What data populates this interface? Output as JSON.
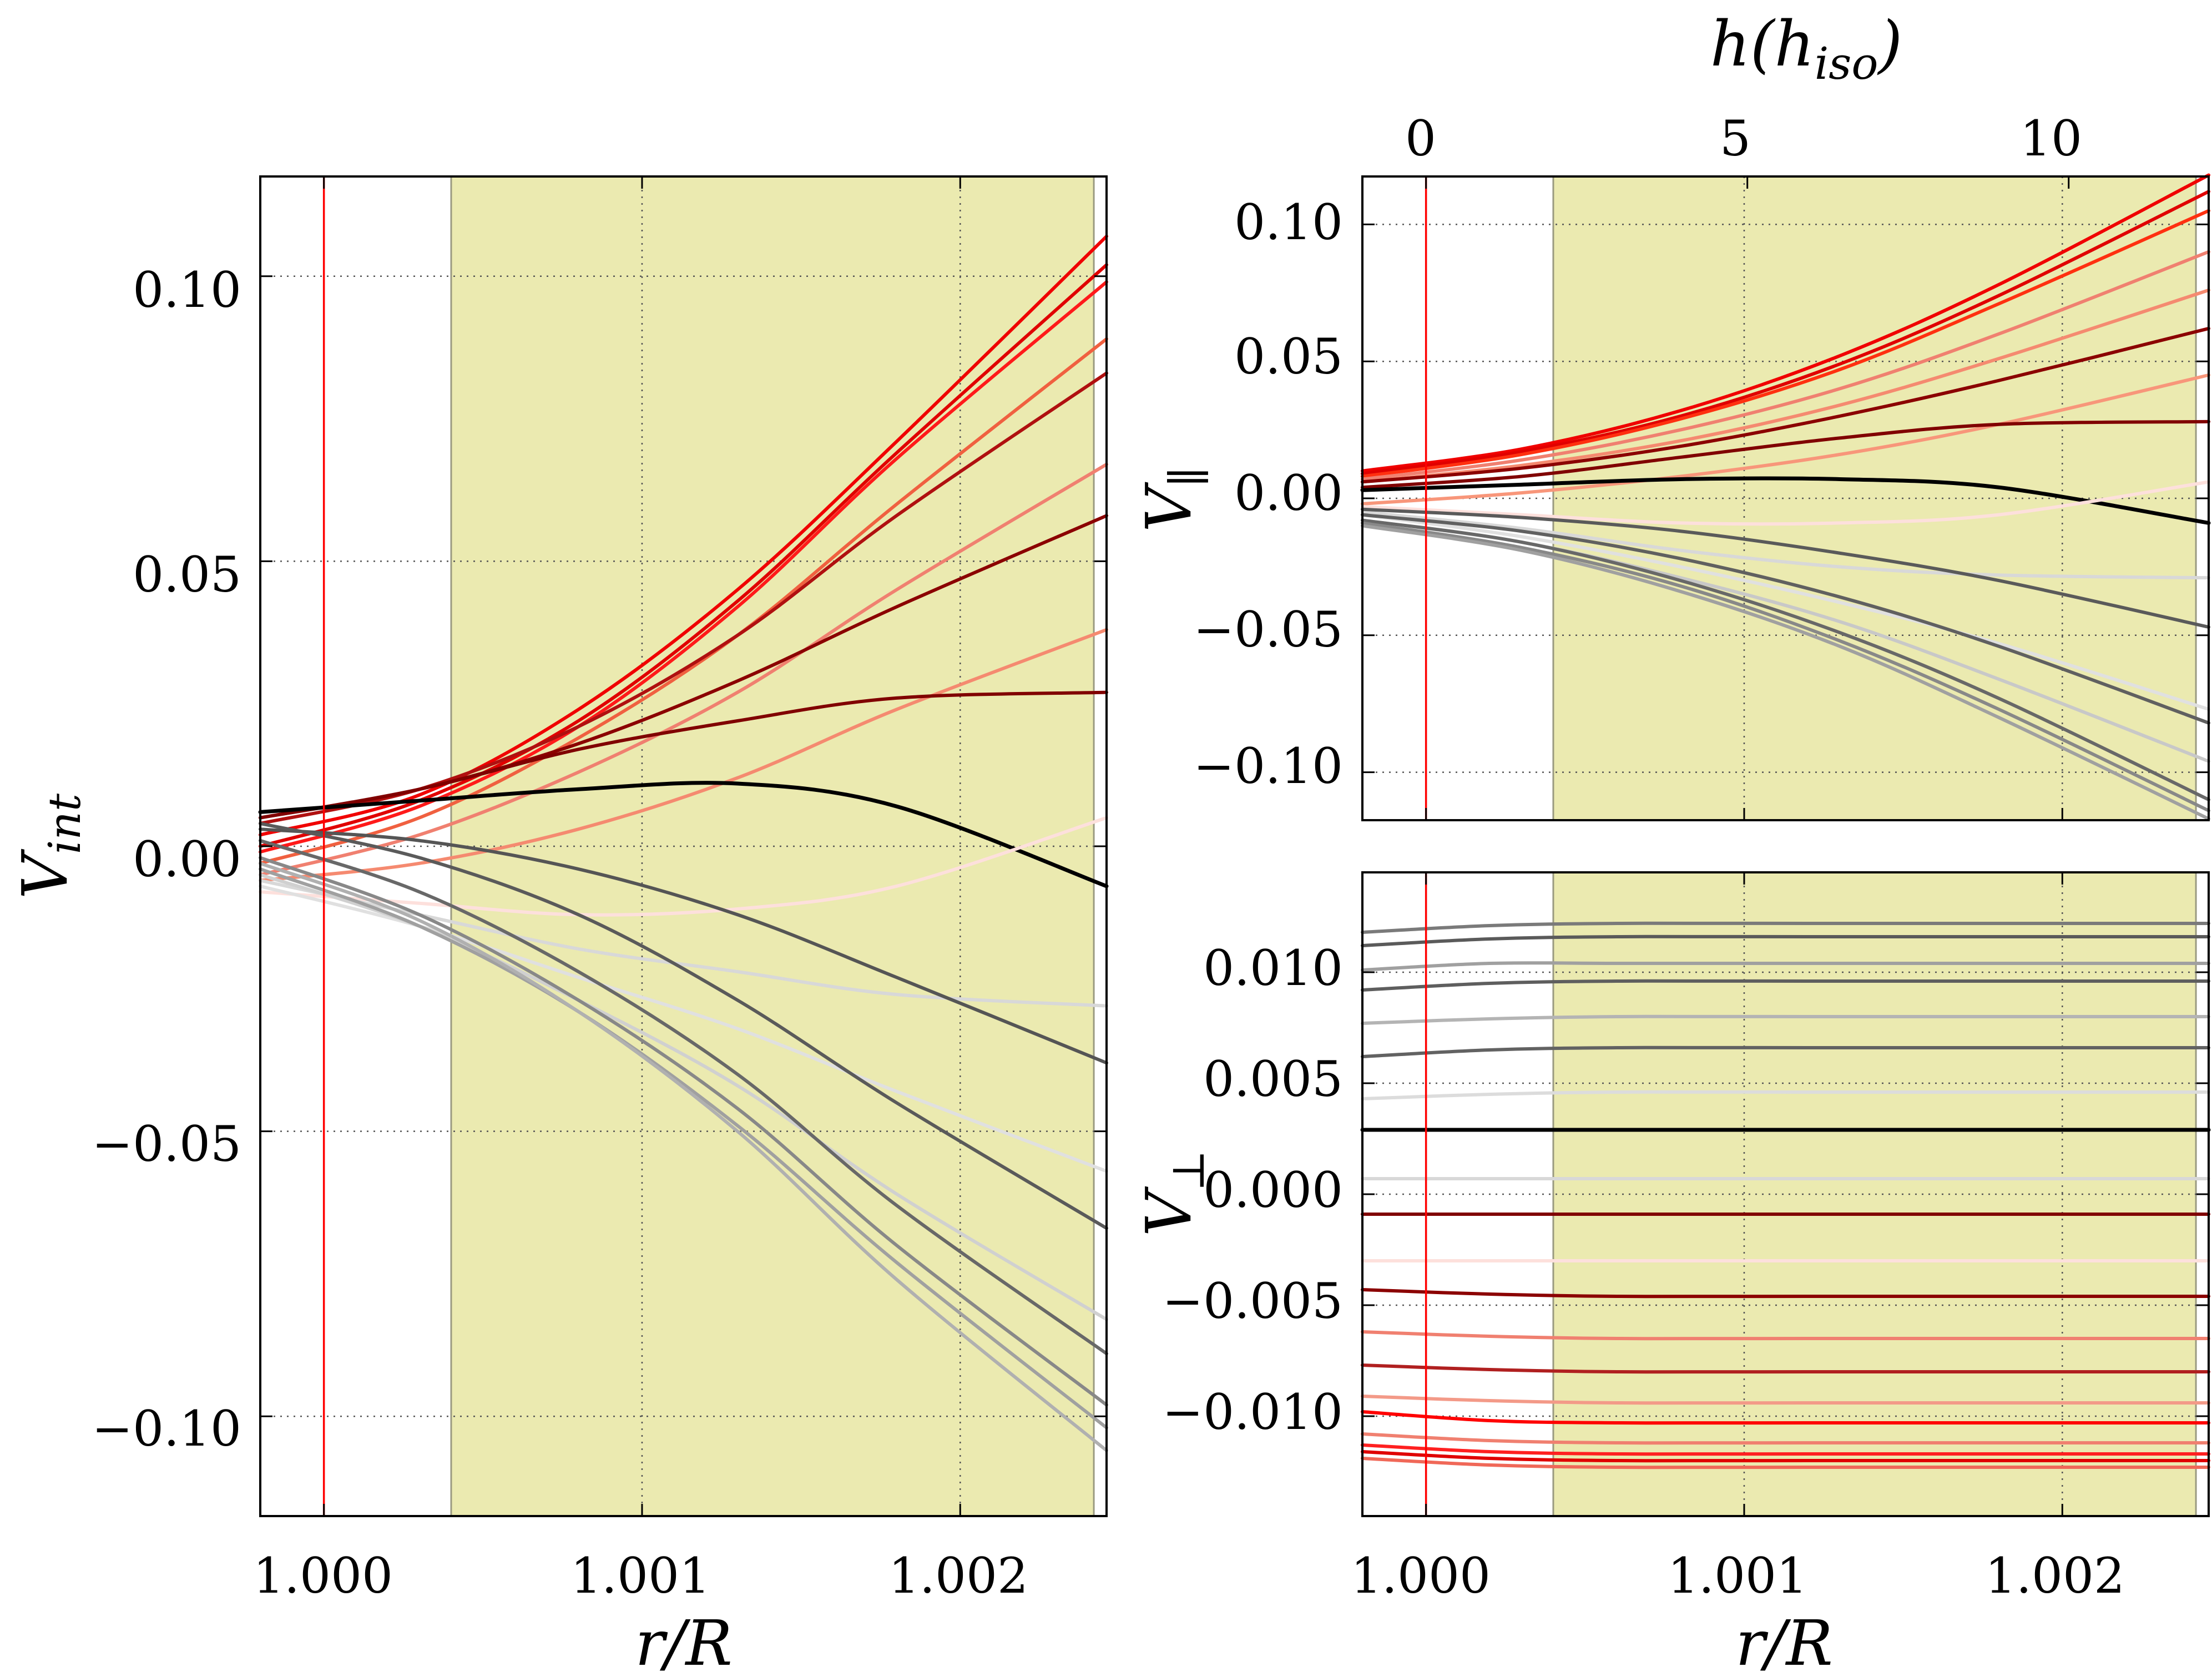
{
  "colors": {
    "shade": "#ebeab0",
    "shade_edge": "#9a9a80",
    "marker": "#ff0000",
    "grid": "#555555"
  },
  "chart_data": [
    {
      "id": "left",
      "type": "line",
      "xlabel": "r/R",
      "ylabel": "V_int",
      "ylabel_main": "V",
      "ylabel_sub": "int",
      "xlim": [
        0.9998,
        1.00246
      ],
      "ylim": [
        -0.1175,
        0.1175
      ],
      "xticks": [
        1.0,
        1.001,
        1.002
      ],
      "xtick_labels": [
        "1.000",
        "1.001",
        "1.002"
      ],
      "yticks": [
        0.1,
        0.05,
        0.0,
        -0.05,
        -0.1
      ],
      "ytick_labels": [
        "0.10",
        "0.05",
        "0.00",
        "−0.05",
        "−0.10"
      ],
      "grid": true,
      "shaded_region": [
        1.0004,
        1.00242
      ],
      "vertical_marker": 1.0,
      "x_samples": [
        0.9998,
        1.0003,
        1.0008,
        1.0013,
        1.0018,
        1.00246
      ],
      "series": [
        {
          "name": "red-1",
          "color": "#f00000",
          "values": [
            0.002,
            0.009,
            0.024,
            0.045,
            0.071,
            0.107
          ]
        },
        {
          "name": "red-2",
          "color": "#e00000",
          "values": [
            0.0,
            0.008,
            0.022,
            0.043,
            0.069,
            0.102
          ]
        },
        {
          "name": "red-3",
          "color": "#ff1a1a",
          "values": [
            -0.001,
            0.007,
            0.021,
            0.042,
            0.068,
            0.099
          ]
        },
        {
          "name": "red-4",
          "color": "#f06040",
          "values": [
            -0.003,
            0.005,
            0.019,
            0.037,
            0.06,
            0.089
          ]
        },
        {
          "name": "darkred-1",
          "color": "#b01010",
          "values": [
            0.004,
            0.01,
            0.021,
            0.037,
            0.058,
            0.083
          ]
        },
        {
          "name": "salmon-1",
          "color": "#f08070",
          "values": [
            -0.005,
            0.002,
            0.013,
            0.027,
            0.045,
            0.067
          ]
        },
        {
          "name": "darkred-2",
          "color": "#8b0000",
          "values": [
            0.005,
            0.01,
            0.018,
            0.029,
            0.042,
            0.058
          ]
        },
        {
          "name": "salmon-2",
          "color": "#f58a70",
          "values": [
            -0.006,
            -0.003,
            0.003,
            0.012,
            0.024,
            0.038
          ]
        },
        {
          "name": "maroon-1",
          "color": "#800000",
          "values": [
            0.005,
            0.01,
            0.017,
            0.022,
            0.026,
            0.027
          ]
        },
        {
          "name": "black",
          "color": "#000000",
          "values": [
            0.006,
            0.008,
            0.01,
            0.011,
            0.007,
            -0.007
          ]
        },
        {
          "name": "pink-1",
          "color": "#fde0dc",
          "values": [
            -0.008,
            -0.01,
            -0.012,
            -0.011,
            -0.007,
            0.005
          ]
        },
        {
          "name": "lightgray-1",
          "color": "#d8d8d8",
          "values": [
            -0.006,
            -0.012,
            -0.018,
            -0.022,
            -0.026,
            -0.028
          ]
        },
        {
          "name": "gray-1",
          "color": "#555555",
          "values": [
            0.003,
            0.001,
            -0.004,
            -0.012,
            -0.023,
            -0.038
          ]
        },
        {
          "name": "lightgray-2",
          "color": "#e0e0e0",
          "values": [
            -0.007,
            -0.014,
            -0.023,
            -0.032,
            -0.043,
            -0.057
          ]
        },
        {
          "name": "gray-2",
          "color": "#5a5a5a",
          "values": [
            0.004,
            -0.002,
            -0.012,
            -0.027,
            -0.045,
            -0.067
          ]
        },
        {
          "name": "lightgray-3",
          "color": "#d0d0d0",
          "values": [
            -0.005,
            -0.014,
            -0.027,
            -0.042,
            -0.061,
            -0.083
          ]
        },
        {
          "name": "gray-3",
          "color": "#686868",
          "values": [
            0.001,
            -0.008,
            -0.022,
            -0.04,
            -0.063,
            -0.089
          ]
        },
        {
          "name": "gray-4",
          "color": "#888888",
          "values": [
            -0.002,
            -0.012,
            -0.027,
            -0.046,
            -0.07,
            -0.098
          ]
        },
        {
          "name": "gray-5",
          "color": "#a0a0a0",
          "values": [
            -0.004,
            -0.014,
            -0.029,
            -0.049,
            -0.073,
            -0.102
          ]
        },
        {
          "name": "gray-6",
          "color": "#b0b0b0",
          "values": [
            -0.003,
            -0.013,
            -0.029,
            -0.05,
            -0.076,
            -0.106
          ]
        }
      ]
    },
    {
      "id": "top-right",
      "type": "line",
      "xlabel": "",
      "ylabel": "V_∥",
      "ylabel_main": "V",
      "ylabel_sub": "∥",
      "top_xlabel": "h(h_iso)",
      "top_xlabel_text": "h(h",
      "top_xlabel_sub": "iso",
      "top_xlabel_end": ")",
      "xlim": [
        0.9998,
        1.00246
      ],
      "ylim": [
        -0.1175,
        0.1175
      ],
      "yticks": [
        0.1,
        0.05,
        0.0,
        -0.05,
        -0.1
      ],
      "ytick_labels": [
        "0.10",
        "0.05",
        "0.00",
        "−0.05",
        "−0.10"
      ],
      "top_xticks_data": [
        1.0,
        1.00101,
        1.00202
      ],
      "top_xtick_labels": [
        "0",
        "5",
        "10"
      ],
      "grid": true,
      "shaded_region": [
        1.0004,
        1.00242
      ],
      "vertical_marker": 1.0,
      "x_samples": [
        0.9998,
        1.0003,
        1.0008,
        1.0013,
        1.0018,
        1.00246
      ],
      "series": [
        {
          "name": "red-1",
          "color": "#f00000",
          "values": [
            0.01,
            0.018,
            0.032,
            0.052,
            0.078,
            0.118
          ]
        },
        {
          "name": "red-2",
          "color": "#e00000",
          "values": [
            0.009,
            0.017,
            0.03,
            0.049,
            0.074,
            0.112
          ]
        },
        {
          "name": "red-3",
          "color": "#ff3010",
          "values": [
            0.008,
            0.016,
            0.029,
            0.047,
            0.071,
            0.105
          ]
        },
        {
          "name": "salmon-1",
          "color": "#f08070",
          "values": [
            0.007,
            0.014,
            0.025,
            0.04,
            0.06,
            0.09
          ]
        },
        {
          "name": "salmon-2",
          "color": "#f58a70",
          "values": [
            0.006,
            0.012,
            0.021,
            0.034,
            0.051,
            0.076
          ]
        },
        {
          "name": "darkred-1",
          "color": "#8b0000",
          "values": [
            0.006,
            0.011,
            0.019,
            0.03,
            0.043,
            0.062
          ]
        },
        {
          "name": "salmon-3",
          "color": "#f8967a",
          "values": [
            -0.002,
            0.002,
            0.008,
            0.016,
            0.027,
            0.045
          ]
        },
        {
          "name": "maroon-1",
          "color": "#800000",
          "values": [
            0.004,
            0.008,
            0.015,
            0.022,
            0.027,
            0.028
          ]
        },
        {
          "name": "black",
          "color": "#000000",
          "values": [
            0.003,
            0.005,
            0.007,
            0.007,
            0.004,
            -0.009
          ]
        },
        {
          "name": "pink-1",
          "color": "#fde0dc",
          "values": [
            -0.003,
            -0.006,
            -0.009,
            -0.009,
            -0.006,
            0.006
          ]
        },
        {
          "name": "lightgray-1",
          "color": "#d8d8d8",
          "values": [
            -0.005,
            -0.011,
            -0.019,
            -0.025,
            -0.028,
            -0.029
          ]
        },
        {
          "name": "gray-1",
          "color": "#5a5a5a",
          "values": [
            -0.004,
            -0.007,
            -0.012,
            -0.02,
            -0.03,
            -0.047
          ]
        },
        {
          "name": "lightgray-2",
          "color": "#e0e0e0",
          "values": [
            -0.006,
            -0.014,
            -0.025,
            -0.038,
            -0.053,
            -0.077
          ]
        },
        {
          "name": "gray-2",
          "color": "#606060",
          "values": [
            -0.006,
            -0.012,
            -0.022,
            -0.036,
            -0.054,
            -0.082
          ]
        },
        {
          "name": "lightgray-3",
          "color": "#c8c8c8",
          "values": [
            -0.008,
            -0.016,
            -0.029,
            -0.045,
            -0.066,
            -0.096
          ]
        },
        {
          "name": "gray-3",
          "color": "#686868",
          "values": [
            -0.008,
            -0.016,
            -0.03,
            -0.049,
            -0.073,
            -0.11
          ]
        },
        {
          "name": "gray-4",
          "color": "#888888",
          "values": [
            -0.009,
            -0.018,
            -0.032,
            -0.052,
            -0.077,
            -0.114
          ]
        },
        {
          "name": "gray-5",
          "color": "#a0a0a0",
          "values": [
            -0.01,
            -0.019,
            -0.034,
            -0.054,
            -0.08,
            -0.117
          ]
        }
      ]
    },
    {
      "id": "bottom-right",
      "type": "line",
      "xlabel": "r/R",
      "ylabel": "V_⊥",
      "ylabel_main": "V",
      "ylabel_sub": "⊥",
      "xlim": [
        0.9998,
        1.00246
      ],
      "ylim": [
        -0.0145,
        0.0145
      ],
      "xticks": [
        1.0,
        1.001,
        1.002
      ],
      "xtick_labels": [
        "1.000",
        "1.001",
        "1.002"
      ],
      "yticks": [
        0.01,
        0.005,
        0.0,
        -0.005,
        -0.01
      ],
      "ytick_labels": [
        "0.010",
        "0.005",
        "0.000",
        "−0.005",
        "−0.010"
      ],
      "grid": true,
      "shaded_region": [
        1.0004,
        1.00242
      ],
      "vertical_marker": 1.0,
      "x_samples": [
        0.9998,
        1.0002,
        1.0006,
        1.0012,
        1.00246
      ],
      "series": [
        {
          "name": "gray-1",
          "color": "#7a7a7a",
          "values": [
            0.0118,
            0.0121,
            0.0122,
            0.0122,
            0.0122
          ]
        },
        {
          "name": "gray-2",
          "color": "#5a5a5a",
          "values": [
            0.0112,
            0.0115,
            0.0116,
            0.0116,
            0.0116
          ]
        },
        {
          "name": "gray-3",
          "color": "#a0a0a0",
          "values": [
            0.0101,
            0.0104,
            0.0104,
            0.0104,
            0.0104
          ]
        },
        {
          "name": "gray-4",
          "color": "#5e5e5e",
          "values": [
            0.0092,
            0.0095,
            0.0096,
            0.0096,
            0.0096
          ]
        },
        {
          "name": "lightgray-1",
          "color": "#b4b4b4",
          "values": [
            0.0077,
            0.0079,
            0.008,
            0.008,
            0.008
          ]
        },
        {
          "name": "gray-5",
          "color": "#626262",
          "values": [
            0.0062,
            0.0065,
            0.0066,
            0.0066,
            0.0066
          ]
        },
        {
          "name": "lightgray-2",
          "color": "#dcdcdc",
          "values": [
            0.0043,
            0.0045,
            0.0046,
            0.0046,
            0.0046
          ]
        },
        {
          "name": "black",
          "color": "#000000",
          "values": [
            0.0029,
            0.0029,
            0.0029,
            0.0029,
            0.0029
          ]
        },
        {
          "name": "lightgray-3",
          "color": "#d8d8d8",
          "values": [
            0.0007,
            0.0007,
            0.0007,
            0.0007,
            0.0007
          ]
        },
        {
          "name": "maroon-1",
          "color": "#800000",
          "values": [
            -0.0009,
            -0.0009,
            -0.0009,
            -0.0009,
            -0.0009
          ]
        },
        {
          "name": "pink-1",
          "color": "#fde0dc",
          "values": [
            -0.003,
            -0.003,
            -0.003,
            -0.003,
            -0.003
          ]
        },
        {
          "name": "darkred-1",
          "color": "#8b0000",
          "values": [
            -0.0043,
            -0.0045,
            -0.0046,
            -0.0046,
            -0.0046
          ]
        },
        {
          "name": "salmon-1",
          "color": "#f08070",
          "values": [
            -0.0062,
            -0.0064,
            -0.0065,
            -0.0065,
            -0.0065
          ]
        },
        {
          "name": "darkred-2",
          "color": "#b02020",
          "values": [
            -0.0077,
            -0.0079,
            -0.008,
            -0.008,
            -0.008
          ]
        },
        {
          "name": "salmon-2",
          "color": "#f39a88",
          "values": [
            -0.0091,
            -0.0093,
            -0.0094,
            -0.0094,
            -0.0094
          ]
        },
        {
          "name": "red-1",
          "color": "#ff0000",
          "values": [
            -0.0098,
            -0.0102,
            -0.0103,
            -0.0103,
            -0.0103
          ]
        },
        {
          "name": "salmon-3",
          "color": "#f08070",
          "values": [
            -0.0108,
            -0.0111,
            -0.0112,
            -0.0112,
            -0.0112
          ]
        },
        {
          "name": "red-2",
          "color": "#ff2020",
          "values": [
            -0.0113,
            -0.0116,
            -0.0117,
            -0.0117,
            -0.0117
          ]
        },
        {
          "name": "red-3",
          "color": "#e00000",
          "values": [
            -0.0116,
            -0.0119,
            -0.012,
            -0.012,
            -0.012
          ]
        },
        {
          "name": "salmon-4",
          "color": "#f06858",
          "values": [
            -0.0119,
            -0.0122,
            -0.0123,
            -0.0123,
            -0.0123
          ]
        }
      ]
    }
  ]
}
